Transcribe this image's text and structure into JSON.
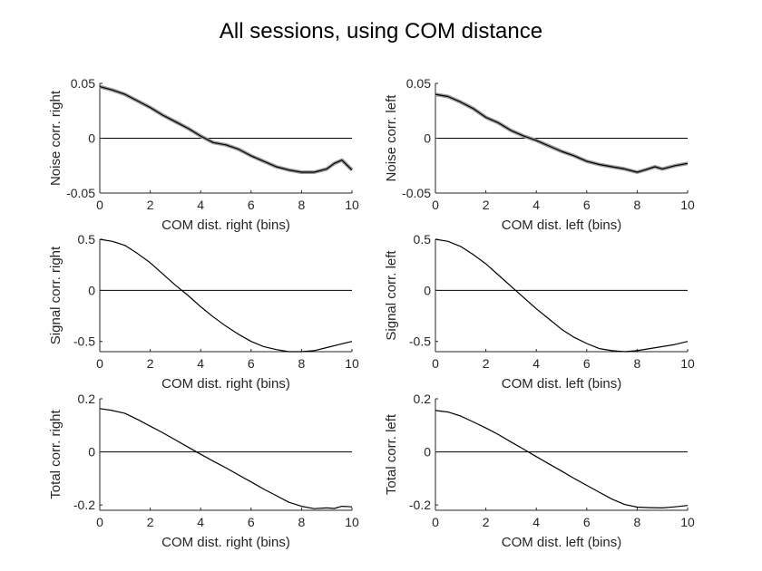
{
  "figure": {
    "title": "All sessions, using COM distance"
  },
  "chart_data": [
    {
      "type": "line",
      "panel": "top-left",
      "xlabel": "COM dist. right (bins)",
      "ylabel": "Noise corr. right",
      "xlim": [
        0,
        10
      ],
      "ylim": [
        -0.05,
        0.05
      ],
      "xticks": [
        "0",
        "2",
        "4",
        "6",
        "8",
        "10"
      ],
      "yticks": [
        "-0.05",
        "0",
        "0.05"
      ],
      "zero_line": true,
      "band": true,
      "x": [
        0,
        0.5,
        1,
        1.5,
        2,
        2.5,
        3,
        3.5,
        4,
        4.5,
        5,
        5.5,
        6,
        6.5,
        7,
        7.5,
        8,
        8.5,
        9,
        9.3,
        9.6,
        10
      ],
      "values": [
        0.047,
        0.044,
        0.04,
        0.034,
        0.028,
        0.021,
        0.015,
        0.009,
        0.002,
        -0.004,
        -0.006,
        -0.01,
        -0.016,
        -0.021,
        -0.026,
        -0.029,
        -0.031,
        -0.031,
        -0.028,
        -0.023,
        -0.02,
        -0.029
      ]
    },
    {
      "type": "line",
      "panel": "top-right",
      "xlabel": "COM dist. left (bins)",
      "ylabel": "Noise corr. left",
      "xlim": [
        0,
        10
      ],
      "ylim": [
        -0.05,
        0.05
      ],
      "xticks": [
        "0",
        "2",
        "4",
        "6",
        "8",
        "10"
      ],
      "yticks": [
        "-0.05",
        "0",
        "0.05"
      ],
      "zero_line": true,
      "band": true,
      "x": [
        0,
        0.5,
        1,
        1.5,
        2,
        2.5,
        3,
        3.5,
        4,
        4.5,
        5,
        5.5,
        6,
        6.5,
        7,
        7.5,
        8,
        8.3,
        8.7,
        9,
        9.5,
        10
      ],
      "values": [
        0.04,
        0.038,
        0.033,
        0.027,
        0.019,
        0.014,
        0.007,
        0.002,
        -0.002,
        -0.007,
        -0.012,
        -0.016,
        -0.021,
        -0.024,
        -0.026,
        -0.028,
        -0.031,
        -0.029,
        -0.026,
        -0.028,
        -0.025,
        -0.023
      ]
    },
    {
      "type": "line",
      "panel": "middle-left",
      "xlabel": "COM dist. right (bins)",
      "ylabel": "Signal corr. right",
      "xlim": [
        0,
        10
      ],
      "ylim": [
        -0.6,
        0.5
      ],
      "xticks": [
        "0",
        "2",
        "4",
        "6",
        "8",
        "10"
      ],
      "yticks": [
        "-0.5",
        "0",
        "0.5"
      ],
      "zero_line": true,
      "band": false,
      "x": [
        0,
        0.5,
        1,
        1.5,
        2,
        2.5,
        3,
        3.5,
        4,
        4.5,
        5,
        5.5,
        6,
        6.5,
        7,
        7.5,
        8,
        8.5,
        9,
        9.5,
        10
      ],
      "values": [
        0.5,
        0.48,
        0.44,
        0.36,
        0.27,
        0.16,
        0.05,
        -0.05,
        -0.16,
        -0.26,
        -0.35,
        -0.43,
        -0.5,
        -0.55,
        -0.58,
        -0.6,
        -0.6,
        -0.59,
        -0.56,
        -0.53,
        -0.5
      ]
    },
    {
      "type": "line",
      "panel": "middle-right",
      "xlabel": "COM dist. left (bins)",
      "ylabel": "Signal corr. left",
      "xlim": [
        0,
        10
      ],
      "ylim": [
        -0.6,
        0.5
      ],
      "xticks": [
        "0",
        "2",
        "4",
        "6",
        "8",
        "10"
      ],
      "yticks": [
        "-0.5",
        "0",
        "0.5"
      ],
      "zero_line": true,
      "band": false,
      "x": [
        0,
        0.5,
        1,
        1.5,
        2,
        2.5,
        3,
        3.5,
        4,
        4.5,
        5,
        5.5,
        6,
        6.5,
        7,
        7.5,
        8,
        8.5,
        9,
        9.5,
        10
      ],
      "values": [
        0.5,
        0.48,
        0.43,
        0.35,
        0.26,
        0.15,
        0.04,
        -0.07,
        -0.18,
        -0.28,
        -0.38,
        -0.46,
        -0.52,
        -0.57,
        -0.59,
        -0.6,
        -0.59,
        -0.57,
        -0.55,
        -0.53,
        -0.5
      ]
    },
    {
      "type": "line",
      "panel": "bottom-left",
      "xlabel": "COM dist. right (bins)",
      "ylabel": "Total corr. right",
      "xlim": [
        0,
        10
      ],
      "ylim": [
        -0.22,
        0.2
      ],
      "xticks": [
        "0",
        "2",
        "4",
        "6",
        "8",
        "10"
      ],
      "yticks": [
        "-0.2",
        "0",
        "0.2"
      ],
      "zero_line": true,
      "band": false,
      "x": [
        0,
        0.5,
        1,
        1.5,
        2,
        2.5,
        3,
        3.5,
        4,
        4.5,
        5,
        5.5,
        6,
        6.5,
        7,
        7.5,
        8,
        8.5,
        9,
        9.3,
        9.6,
        10
      ],
      "values": [
        0.163,
        0.156,
        0.145,
        0.122,
        0.097,
        0.072,
        0.045,
        0.018,
        -0.009,
        -0.035,
        -0.06,
        -0.087,
        -0.113,
        -0.14,
        -0.165,
        -0.19,
        -0.205,
        -0.214,
        -0.211,
        -0.213,
        -0.205,
        -0.207
      ]
    },
    {
      "type": "line",
      "panel": "bottom-right",
      "xlabel": "COM dist. left (bins)",
      "ylabel": "Total corr. left",
      "xlim": [
        0,
        10
      ],
      "ylim": [
        -0.22,
        0.2
      ],
      "xticks": [
        "0",
        "2",
        "4",
        "6",
        "8",
        "10"
      ],
      "yticks": [
        "-0.2",
        "0",
        "0.2"
      ],
      "zero_line": true,
      "band": false,
      "x": [
        0,
        0.5,
        1,
        1.5,
        2,
        2.5,
        3,
        3.5,
        4,
        4.5,
        5,
        5.5,
        6,
        6.5,
        7,
        7.5,
        8,
        8.5,
        9,
        9.5,
        10
      ],
      "values": [
        0.156,
        0.15,
        0.135,
        0.113,
        0.09,
        0.065,
        0.037,
        0.01,
        -0.018,
        -0.045,
        -0.072,
        -0.1,
        -0.126,
        -0.152,
        -0.178,
        -0.198,
        -0.208,
        -0.21,
        -0.211,
        -0.207,
        -0.202
      ]
    }
  ]
}
